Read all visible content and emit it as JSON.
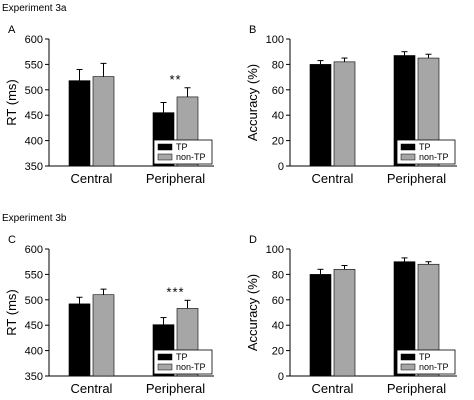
{
  "figure": {
    "experiments": [
      {
        "title": "Experiment 3a"
      },
      {
        "title": "Experiment 3b"
      }
    ]
  },
  "colors": {
    "tp": "#000000",
    "non_tp": "#a6a6a6",
    "axis": "#000000"
  },
  "chart_data": [
    {
      "type": "bar",
      "panel": "A",
      "experiment": "Experiment 3a",
      "ylabel": "RT (ms)",
      "xlabel": "",
      "ylim": [
        350,
        600
      ],
      "yticks": [
        350,
        400,
        450,
        500,
        550,
        600
      ],
      "categories": [
        "Central",
        "Peripheral"
      ],
      "series": [
        {
          "name": "TP",
          "color": "#000000",
          "values": [
            518,
            455
          ],
          "errors": [
            22,
            20
          ]
        },
        {
          "name": "non-TP",
          "color": "#a6a6a6",
          "values": [
            526,
            486
          ],
          "errors": [
            26,
            18
          ]
        }
      ],
      "annotations": [
        {
          "category": "Peripheral",
          "text": "**"
        }
      ],
      "legend": {
        "position": "bottom-right",
        "entries": [
          "TP",
          "non-TP"
        ]
      },
      "grid": false
    },
    {
      "type": "bar",
      "panel": "B",
      "experiment": "Experiment 3a",
      "ylabel": "Accuracy (%)",
      "xlabel": "",
      "ylim": [
        0,
        100
      ],
      "yticks": [
        0,
        20,
        40,
        60,
        80,
        100
      ],
      "categories": [
        "Central",
        "Peripheral"
      ],
      "series": [
        {
          "name": "TP",
          "color": "#000000",
          "values": [
            80,
            87
          ],
          "errors": [
            3,
            3
          ]
        },
        {
          "name": "non-TP",
          "color": "#a6a6a6",
          "values": [
            82,
            85
          ],
          "errors": [
            3,
            3
          ]
        }
      ],
      "annotations": [],
      "legend": {
        "position": "bottom-right",
        "entries": [
          "TP",
          "non-TP"
        ]
      },
      "grid": false
    },
    {
      "type": "bar",
      "panel": "C",
      "experiment": "Experiment 3b",
      "ylabel": "RT (ms)",
      "xlabel": "",
      "ylim": [
        350,
        600
      ],
      "yticks": [
        350,
        400,
        450,
        500,
        550,
        600
      ],
      "categories": [
        "Central",
        "Peripheral"
      ],
      "series": [
        {
          "name": "TP",
          "color": "#000000",
          "values": [
            492,
            451
          ],
          "errors": [
            13,
            14
          ]
        },
        {
          "name": "non-TP",
          "color": "#a6a6a6",
          "values": [
            510,
            483
          ],
          "errors": [
            11,
            16
          ]
        }
      ],
      "annotations": [
        {
          "category": "Peripheral",
          "text": "***"
        }
      ],
      "legend": {
        "position": "bottom-right",
        "entries": [
          "TP",
          "non-TP"
        ]
      },
      "grid": false
    },
    {
      "type": "bar",
      "panel": "D",
      "experiment": "Experiment 3b",
      "ylabel": "Accuracy (%)",
      "xlabel": "",
      "ylim": [
        0,
        100
      ],
      "yticks": [
        0,
        20,
        40,
        60,
        80,
        100
      ],
      "categories": [
        "Central",
        "Peripheral"
      ],
      "series": [
        {
          "name": "TP",
          "color": "#000000",
          "values": [
            80,
            90
          ],
          "errors": [
            4,
            3
          ]
        },
        {
          "name": "non-TP",
          "color": "#a6a6a6",
          "values": [
            84,
            88
          ],
          "errors": [
            3,
            2
          ]
        }
      ],
      "annotations": [],
      "legend": {
        "position": "bottom-right",
        "entries": [
          "TP",
          "non-TP"
        ]
      },
      "grid": false
    }
  ]
}
